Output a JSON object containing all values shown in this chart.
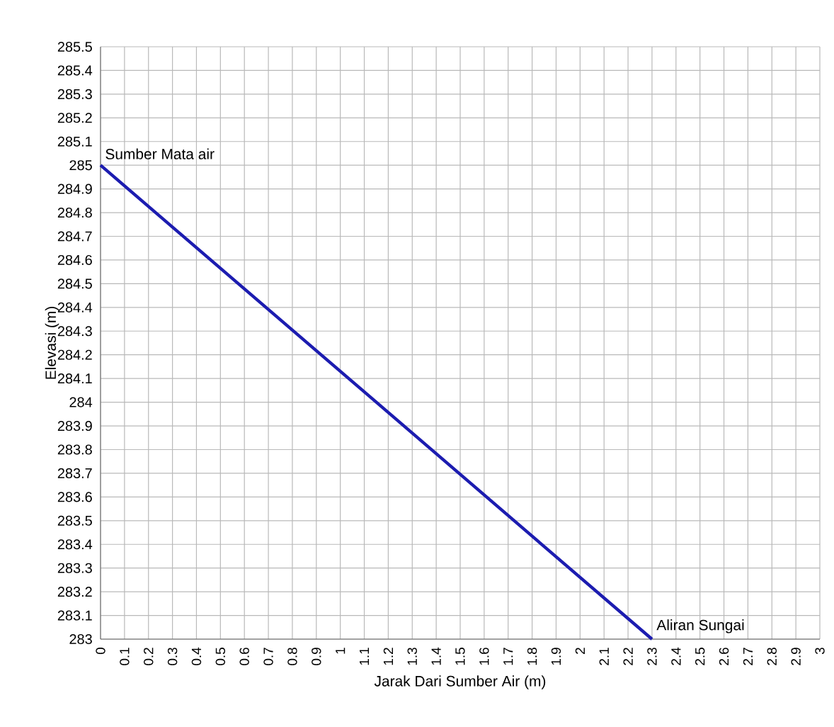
{
  "chart_data": {
    "type": "line",
    "xlabel": "Jarak Dari Sumber Air (m)",
    "ylabel": "Elevasi (m)",
    "x": [
      0,
      2.3
    ],
    "series": [
      {
        "color": "#1c1cb0",
        "values": [
          285,
          283
        ]
      }
    ],
    "xlim": [
      0,
      3
    ],
    "ylim": [
      283,
      285.5
    ],
    "xticks": [
      0,
      0.1,
      0.2,
      0.3,
      0.4,
      0.5,
      0.6,
      0.7,
      0.8,
      0.9,
      1,
      1.1,
      1.2,
      1.3,
      1.4,
      1.5,
      1.6,
      1.7,
      1.8,
      1.9,
      2,
      2.1,
      2.2,
      2.3,
      2.4,
      2.5,
      2.6,
      2.7,
      2.8,
      2.9,
      3
    ],
    "yticks": [
      283,
      283.1,
      283.2,
      283.3,
      283.4,
      283.5,
      283.6,
      283.7,
      283.8,
      283.9,
      284,
      284.1,
      284.2,
      284.3,
      284.4,
      284.5,
      284.6,
      284.7,
      284.8,
      284.9,
      285,
      285.1,
      285.2,
      285.3,
      285.4,
      285.5
    ],
    "grid": true,
    "marker": "none",
    "line_style": "solid",
    "annotations": [
      {
        "text": "Sumber Mata air",
        "x": 0,
        "y": 285
      },
      {
        "text": "Aliran Sungai",
        "x": 2.3,
        "y": 283
      }
    ]
  }
}
